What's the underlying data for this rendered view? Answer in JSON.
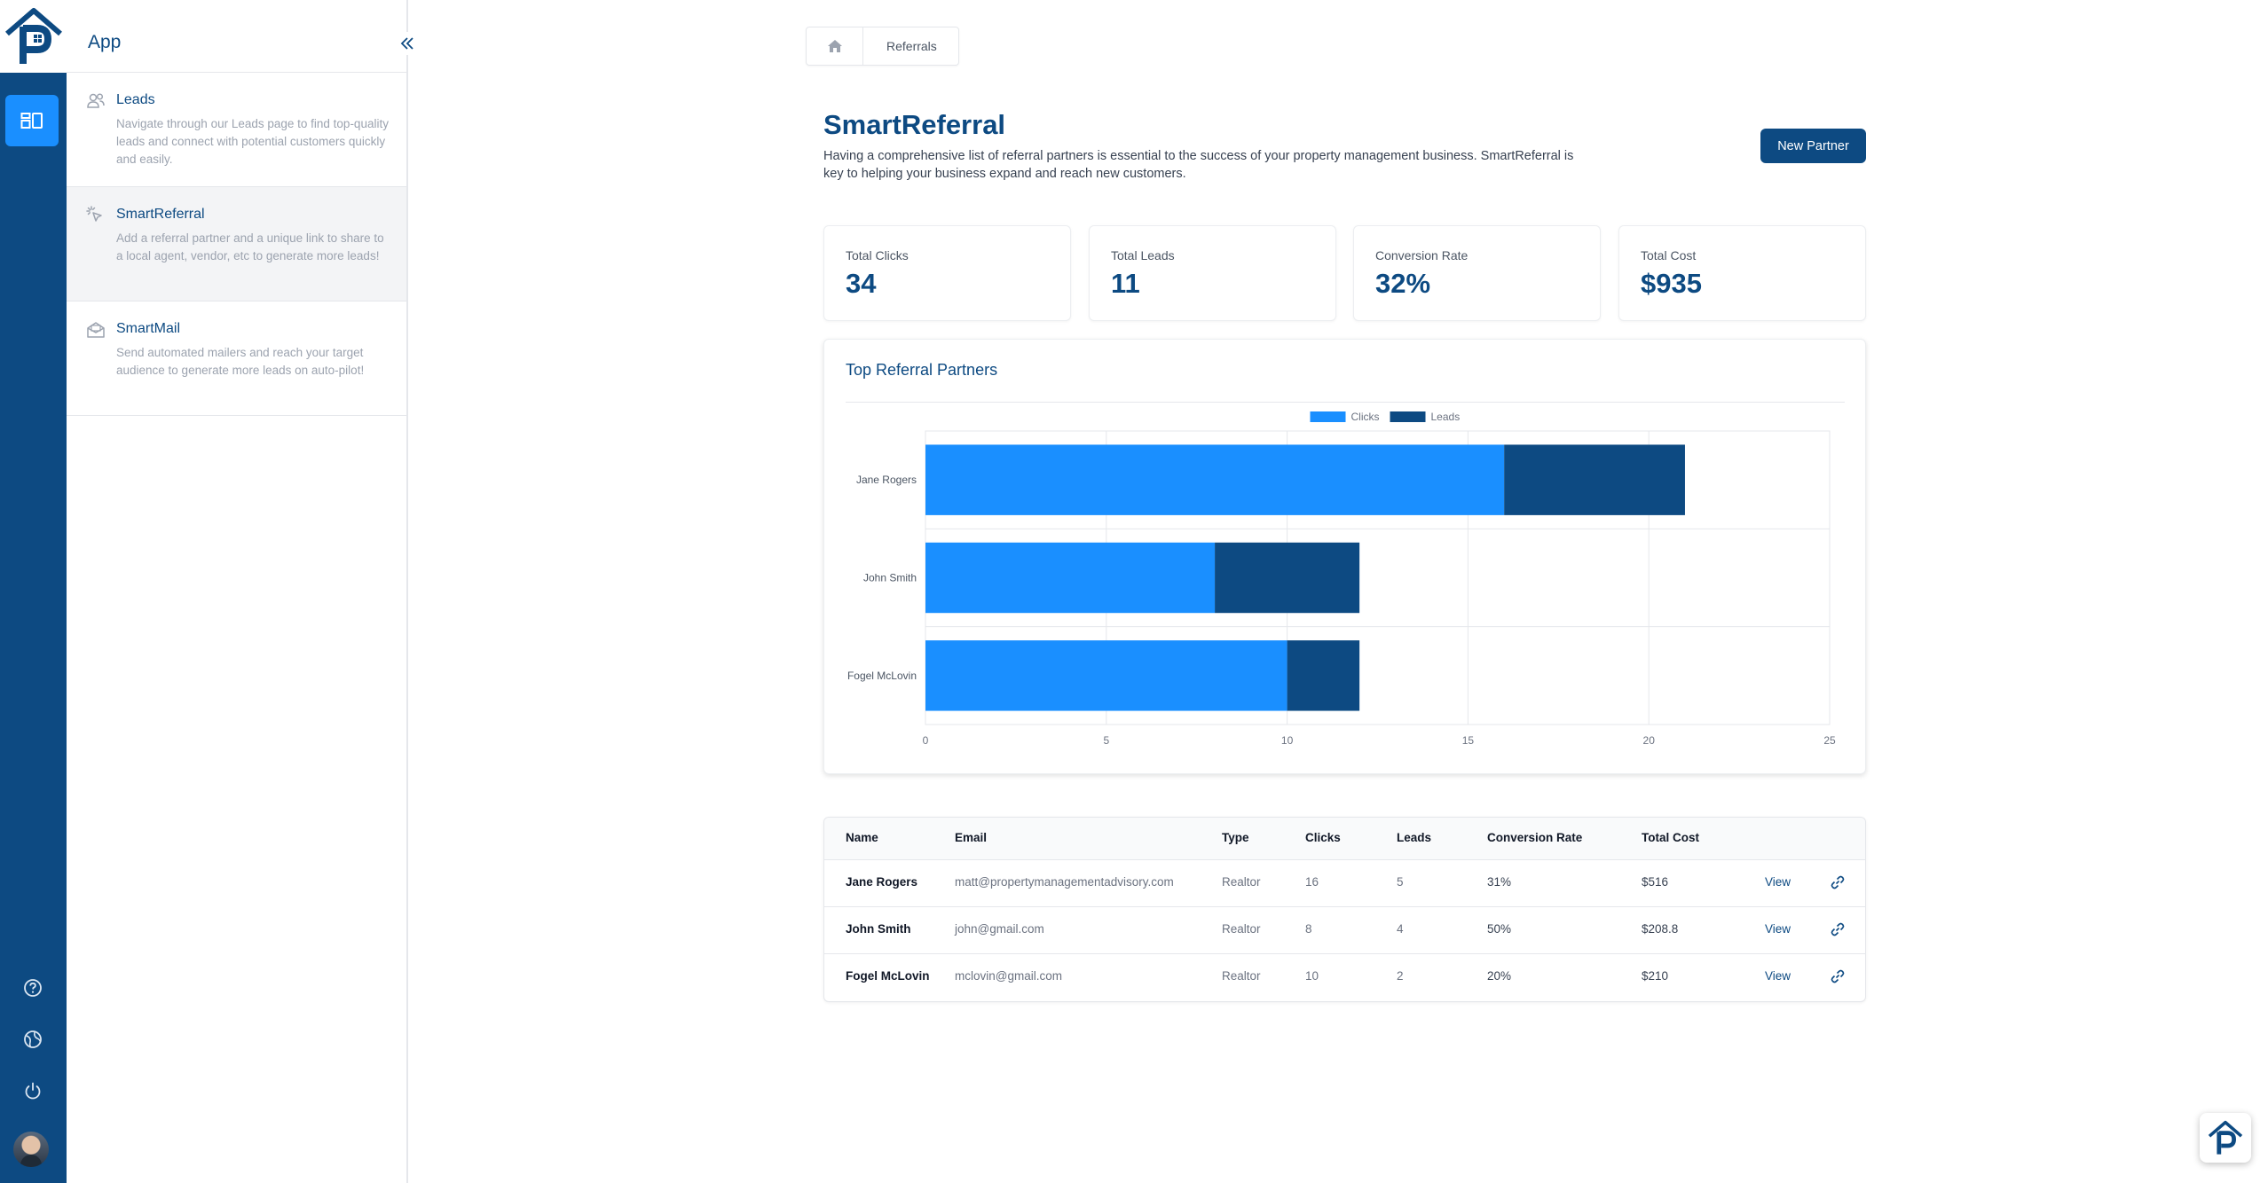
{
  "sidebar": {
    "title": "App",
    "items": [
      {
        "label": "Leads",
        "description": "Navigate through our Leads page to find top-quality leads and connect with potential customers quickly and easily.",
        "icon": "users-icon",
        "active": false
      },
      {
        "label": "SmartReferral",
        "description": "Add a referral partner and a unique link to share to a local agent, vendor, etc to generate more leads!",
        "icon": "click-icon",
        "active": true
      },
      {
        "label": "SmartMail",
        "description": "Send automated mailers and reach your target audience to generate more leads on auto-pilot!",
        "icon": "mail-icon",
        "active": false
      }
    ]
  },
  "breadcrumb": {
    "current": "Referrals"
  },
  "header": {
    "title": "SmartReferral",
    "description": "Having a comprehensive list of referral partners is essential to the success of your property management business. SmartReferral is key to helping your business expand and reach new customers.",
    "new_partner_label": "New Partner"
  },
  "stats": [
    {
      "label": "Total Clicks",
      "value": "34"
    },
    {
      "label": "Total Leads",
      "value": "11"
    },
    {
      "label": "Conversion Rate",
      "value": "32%"
    },
    {
      "label": "Total Cost",
      "value": "$935"
    }
  ],
  "chart": {
    "title": "Top Referral Partners"
  },
  "chart_data": {
    "type": "bar",
    "orientation": "horizontal",
    "stacked": true,
    "categories": [
      "Jane Rogers",
      "John Smith",
      "Fogel McLovin"
    ],
    "series": [
      {
        "name": "Clicks",
        "values": [
          16,
          8,
          10
        ],
        "color": "#1a8fff"
      },
      {
        "name": "Leads",
        "values": [
          5,
          4,
          2
        ],
        "color": "#0d4a82"
      }
    ],
    "xticks": [
      "0",
      "5",
      "10",
      "15",
      "20",
      "25"
    ],
    "xlim": [
      0,
      25
    ],
    "grid": true,
    "legend": "top-center"
  },
  "table": {
    "columns": [
      "Name",
      "Email",
      "Type",
      "Clicks",
      "Leads",
      "Conversion Rate",
      "Total Cost"
    ],
    "rows": [
      {
        "name": "Jane Rogers",
        "email": "matt@propertymanagementadvisory.com",
        "type": "Realtor",
        "clicks": "16",
        "leads": "5",
        "rate": "31%",
        "cost": "$516",
        "action": "View"
      },
      {
        "name": "John Smith",
        "email": "john@gmail.com",
        "type": "Realtor",
        "clicks": "8",
        "leads": "4",
        "rate": "50%",
        "cost": "$208.8",
        "action": "View"
      },
      {
        "name": "Fogel McLovin",
        "email": "mclovin@gmail.com",
        "type": "Realtor",
        "clicks": "10",
        "leads": "2",
        "rate": "20%",
        "cost": "$210",
        "action": "View"
      }
    ]
  },
  "colors": {
    "primary": "#0d4a82",
    "accent": "#1a8fff"
  }
}
